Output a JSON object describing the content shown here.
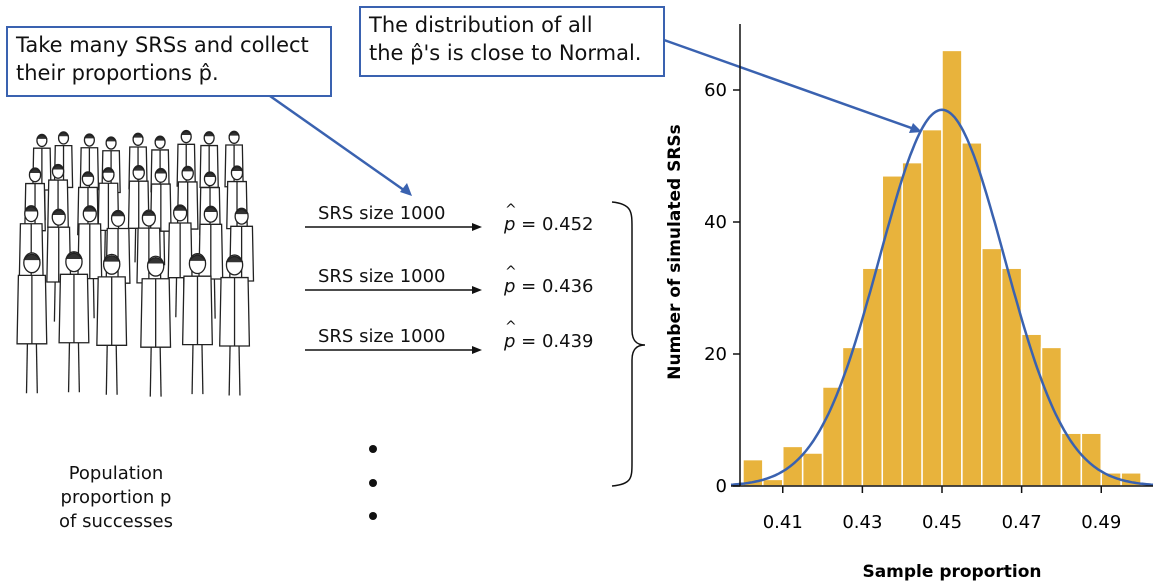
{
  "callouts": {
    "left": [
      "Take many SRSs and collect",
      "their proportions p̂."
    ],
    "top": [
      "The distribution of all",
      "the p̂'s is close to Normal."
    ]
  },
  "samples": [
    {
      "label": "SRS size 1000",
      "phat_value": "= 0.452"
    },
    {
      "label": "SRS size 1000",
      "phat_value": "= 0.436"
    },
    {
      "label": "SRS size 1000",
      "phat_value": "= 0.439"
    }
  ],
  "phat_symbol": "p",
  "population": {
    "line1": "Population",
    "line2": "proportion p",
    "line3": "of successes"
  },
  "chart_data": {
    "type": "bar",
    "xlabel": "Sample proportion",
    "ylabel": "Number of simulated SRSs",
    "xlim": [
      0.397,
      0.503
    ],
    "ylim": [
      0,
      70
    ],
    "x_ticks": [
      0.41,
      0.43,
      0.45,
      0.47,
      0.49
    ],
    "x_tick_labels": [
      "0.41",
      "0.43",
      "0.45",
      "0.47",
      "0.49"
    ],
    "y_ticks": [
      0,
      20,
      40,
      60
    ],
    "y_tick_labels": [
      "0",
      "20",
      "40",
      "60"
    ],
    "bin_width": 0.005,
    "bin_starts": [
      0.4,
      0.405,
      0.41,
      0.415,
      0.42,
      0.425,
      0.43,
      0.435,
      0.44,
      0.445,
      0.45,
      0.455,
      0.46,
      0.465,
      0.47,
      0.475,
      0.48,
      0.485,
      0.49,
      0.495
    ],
    "counts": [
      4,
      1,
      6,
      5,
      15,
      21,
      33,
      47,
      49,
      54,
      66,
      52,
      36,
      33,
      23,
      21,
      8,
      8,
      2,
      2
    ],
    "normal_curve": {
      "mean": 0.45,
      "sd": 0.0157,
      "peak": 57
    },
    "bar_color": "#e8b33c",
    "curve_color": "#3a62b0"
  }
}
